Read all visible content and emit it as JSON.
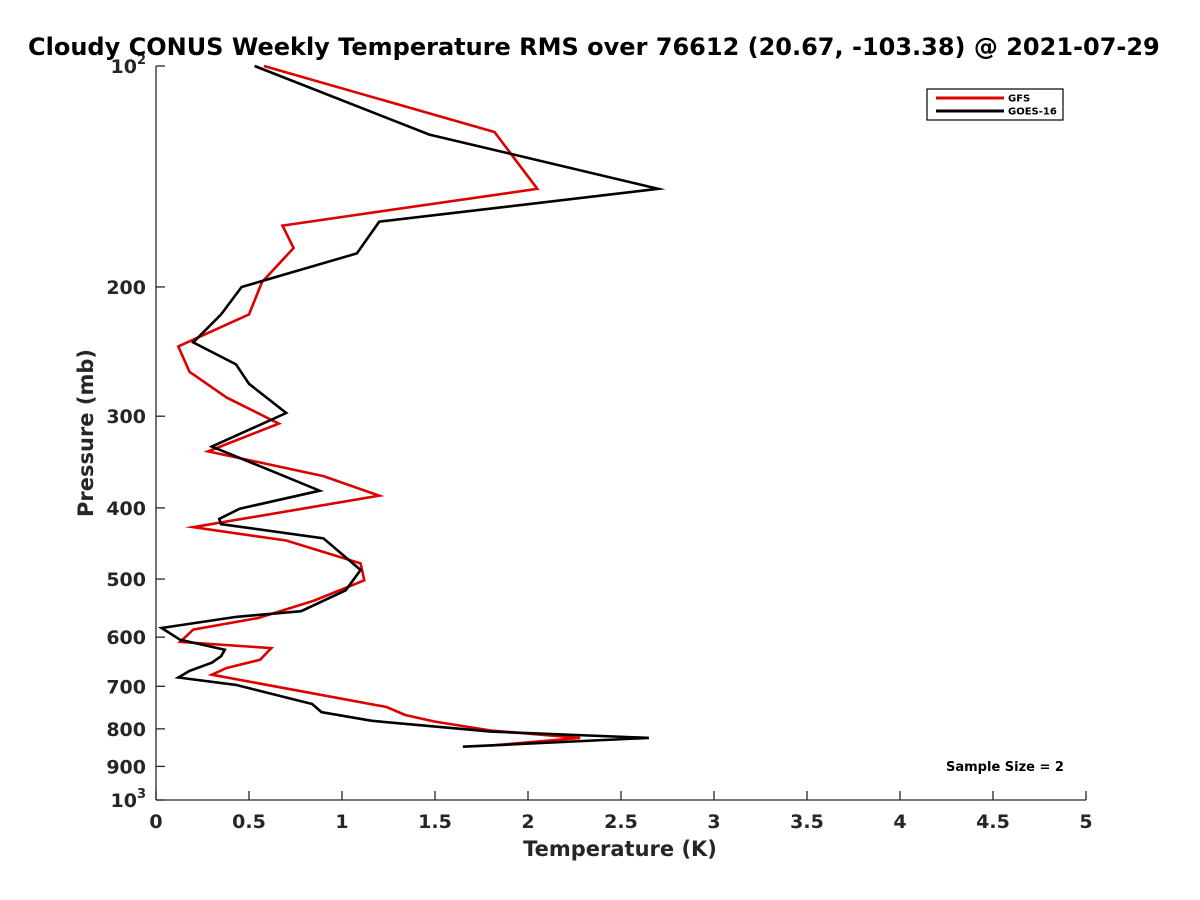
{
  "chart_data": {
    "type": "line",
    "title": "Cloudy CONUS Weekly Temperature RMS over 76612 (20.67, -103.38) @ 2021-07-29",
    "xlabel": "Temperature (K)",
    "ylabel": "Pressure (mb)",
    "xlim": [
      0,
      5
    ],
    "ylim": [
      100,
      1000
    ],
    "yscale": "log",
    "y_reversed": true,
    "x_ticks": [
      0,
      0.5,
      1,
      1.5,
      2,
      2.5,
      3,
      3.5,
      4,
      4.5,
      5
    ],
    "x_tick_labels": [
      "0",
      "0.5",
      "1",
      "1.5",
      "2",
      "2.5",
      "3",
      "3.5",
      "4",
      "4.5",
      "5"
    ],
    "y_ticks": [
      100,
      200,
      300,
      400,
      500,
      600,
      700,
      800,
      900,
      1000
    ],
    "y_tick_labels": [
      {
        "base": "10",
        "exp": "2"
      },
      {
        "base": "200",
        "exp": ""
      },
      {
        "base": "300",
        "exp": ""
      },
      {
        "base": "400",
        "exp": ""
      },
      {
        "base": "500",
        "exp": ""
      },
      {
        "base": "600",
        "exp": ""
      },
      {
        "base": "700",
        "exp": ""
      },
      {
        "base": "800",
        "exp": ""
      },
      {
        "base": "900",
        "exp": ""
      },
      {
        "base": "10",
        "exp": "3"
      }
    ],
    "grid": false,
    "legend_position": "top-right",
    "series": [
      {
        "name": "GFS",
        "color": "#dd0000",
        "x": [
          0.58,
          1.82,
          2.05,
          0.68,
          0.74,
          0.57,
          0.5,
          0.12,
          0.18,
          0.38,
          0.66,
          0.28,
          0.9,
          1.2,
          0.2,
          0.7,
          1.1,
          1.12,
          0.85,
          0.55,
          0.2,
          0.13,
          0.62,
          0.56,
          0.38,
          0.3,
          1.24,
          1.34,
          1.5,
          1.8,
          2.28,
          1.8
        ],
        "y": [
          100,
          123,
          147,
          165,
          177,
          197,
          218,
          241,
          261,
          283,
          307,
          335,
          362,
          385,
          425,
          443,
          476,
          502,
          535,
          565,
          586,
          609,
          621,
          644,
          661,
          675,
          747,
          766,
          782,
          804,
          823,
          843
        ]
      },
      {
        "name": "GOES-16",
        "color": "#000000",
        "x": [
          0.53,
          1.47,
          2.7,
          1.2,
          1.08,
          0.46,
          0.35,
          0.2,
          0.43,
          0.5,
          0.7,
          0.3,
          0.62,
          0.88,
          0.45,
          0.34,
          0.35,
          0.9,
          1.1,
          1.02,
          0.78,
          0.43,
          0.03,
          0.13,
          0.37,
          0.35,
          0.3,
          0.18,
          0.12,
          0.43,
          0.84,
          0.89,
          1.16,
          1.8,
          2.65,
          1.65
        ],
        "y": [
          100,
          124,
          147,
          163,
          180,
          200,
          218,
          238,
          255,
          271,
          297,
          330,
          356,
          379,
          401,
          414,
          421,
          440,
          486,
          518,
          553,
          563,
          583,
          605,
          624,
          637,
          650,
          667,
          681,
          697,
          740,
          759,
          780,
          807,
          823,
          846
        ]
      }
    ],
    "annotation": "Sample Size = 2"
  }
}
